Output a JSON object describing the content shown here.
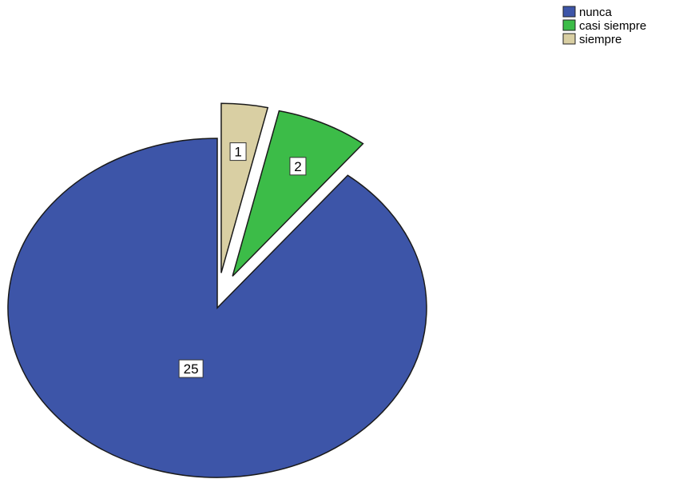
{
  "chart_data": {
    "type": "pie",
    "title": "",
    "categories": [
      "nunca",
      "casi siempre",
      "siempre"
    ],
    "values": [
      25,
      2,
      1
    ],
    "colors": [
      "#3d55a8",
      "#3cbc48",
      "#d9cfa3"
    ],
    "exploded": [
      false,
      true,
      true
    ],
    "start_angle_deg": 0,
    "direction": "counterclockwise",
    "legend_position": "top-right",
    "data_labels": [
      "25",
      "2",
      "1"
    ]
  }
}
